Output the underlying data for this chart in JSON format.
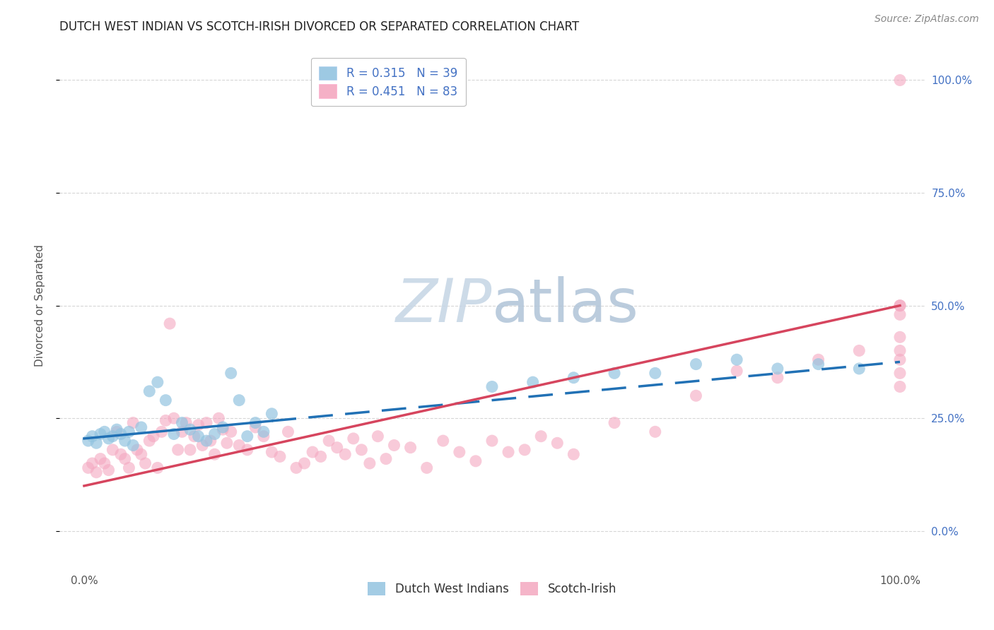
{
  "title": "DUTCH WEST INDIAN VS SCOTCH-IRISH DIVORCED OR SEPARATED CORRELATION CHART",
  "source": "Source: ZipAtlas.com",
  "ylabel": "Divorced or Separated",
  "blue_r": "0.315",
  "blue_n": "39",
  "pink_r": "0.451",
  "pink_n": "83",
  "blue_scatter_color": "#93c4e0",
  "pink_scatter_color": "#f4a8c0",
  "blue_line_color": "#2171b5",
  "pink_line_color": "#d6455e",
  "right_tick_color": "#4472c4",
  "watermark_zip_color": "#ccd9e8",
  "watermark_atlas_color": "#b8cce0",
  "title_color": "#222222",
  "axis_label_color": "#555555",
  "grid_color": "#cccccc",
  "bg_color": "#ffffff",
  "blue_x": [
    0.5,
    1.0,
    1.5,
    2.0,
    2.5,
    3.0,
    3.5,
    4.0,
    4.5,
    5.0,
    5.5,
    6.0,
    7.0,
    8.0,
    9.0,
    10.0,
    11.0,
    12.0,
    13.0,
    14.0,
    15.0,
    16.0,
    17.0,
    18.0,
    19.0,
    20.0,
    21.0,
    22.0,
    23.0,
    50.0,
    55.0,
    60.0,
    65.0,
    70.0,
    75.0,
    80.0,
    85.0,
    90.0,
    95.0
  ],
  "blue_y": [
    20.0,
    21.0,
    19.5,
    21.5,
    22.0,
    20.5,
    21.0,
    22.5,
    21.5,
    20.0,
    22.0,
    19.0,
    23.0,
    31.0,
    33.0,
    29.0,
    21.5,
    24.0,
    22.5,
    21.0,
    20.0,
    21.5,
    23.0,
    35.0,
    29.0,
    21.0,
    24.0,
    22.0,
    26.0,
    32.0,
    33.0,
    34.0,
    35.0,
    35.0,
    37.0,
    38.0,
    36.0,
    37.0,
    36.0
  ],
  "pink_x": [
    0.5,
    1.0,
    1.5,
    2.0,
    2.5,
    3.0,
    3.5,
    4.0,
    4.5,
    5.0,
    5.5,
    6.0,
    6.5,
    7.0,
    7.5,
    8.0,
    8.5,
    9.0,
    9.5,
    10.0,
    10.5,
    11.0,
    11.5,
    12.0,
    12.5,
    13.0,
    13.5,
    14.0,
    14.5,
    15.0,
    15.5,
    16.0,
    16.5,
    17.0,
    17.5,
    18.0,
    19.0,
    20.0,
    21.0,
    22.0,
    23.0,
    24.0,
    25.0,
    26.0,
    27.0,
    28.0,
    29.0,
    30.0,
    31.0,
    32.0,
    33.0,
    34.0,
    35.0,
    36.0,
    37.0,
    38.0,
    40.0,
    42.0,
    44.0,
    46.0,
    48.0,
    50.0,
    52.0,
    54.0,
    56.0,
    58.0,
    60.0,
    65.0,
    70.0,
    75.0,
    80.0,
    85.0,
    90.0,
    95.0,
    100.0,
    100.0,
    100.0,
    100.0,
    100.0,
    100.0,
    100.0,
    100.0,
    100.0
  ],
  "pink_y": [
    14.0,
    15.0,
    13.0,
    16.0,
    15.0,
    13.5,
    18.0,
    22.0,
    17.0,
    16.0,
    14.0,
    24.0,
    18.0,
    17.0,
    15.0,
    20.0,
    21.0,
    14.0,
    22.0,
    24.5,
    46.0,
    25.0,
    18.0,
    22.0,
    24.0,
    18.0,
    21.0,
    23.5,
    19.0,
    24.0,
    20.0,
    17.0,
    25.0,
    22.5,
    19.5,
    22.0,
    19.0,
    18.0,
    23.0,
    21.0,
    17.5,
    16.5,
    22.0,
    14.0,
    15.0,
    17.5,
    16.5,
    20.0,
    18.5,
    17.0,
    20.5,
    18.0,
    15.0,
    21.0,
    16.0,
    19.0,
    18.5,
    14.0,
    20.0,
    17.5,
    15.5,
    20.0,
    17.5,
    18.0,
    21.0,
    19.5,
    17.0,
    24.0,
    22.0,
    30.0,
    35.5,
    34.0,
    38.0,
    40.0,
    50.0,
    100.0,
    32.0,
    35.0,
    38.0,
    40.0,
    43.0,
    48.0,
    50.0
  ],
  "blue_line_x0": 0.0,
  "blue_line_x1": 100.0,
  "blue_line_y0": 20.5,
  "blue_line_y1": 37.5,
  "blue_solid_x1": 23.0,
  "pink_line_x0": 0.0,
  "pink_line_x1": 100.0,
  "pink_line_y0": 10.0,
  "pink_line_y1": 50.0,
  "xlim": [
    -3.0,
    103.0
  ],
  "ylim": [
    -8.0,
    108.0
  ],
  "yticks": [
    0,
    25,
    50,
    75,
    100
  ],
  "xticks": [
    0,
    25,
    50,
    75,
    100
  ],
  "ytick_labels": [
    "0.0%",
    "25.0%",
    "50.0%",
    "75.0%",
    "100.0%"
  ],
  "xtick_labels": [
    "0.0%",
    "",
    "",
    "",
    "100.0%"
  ]
}
